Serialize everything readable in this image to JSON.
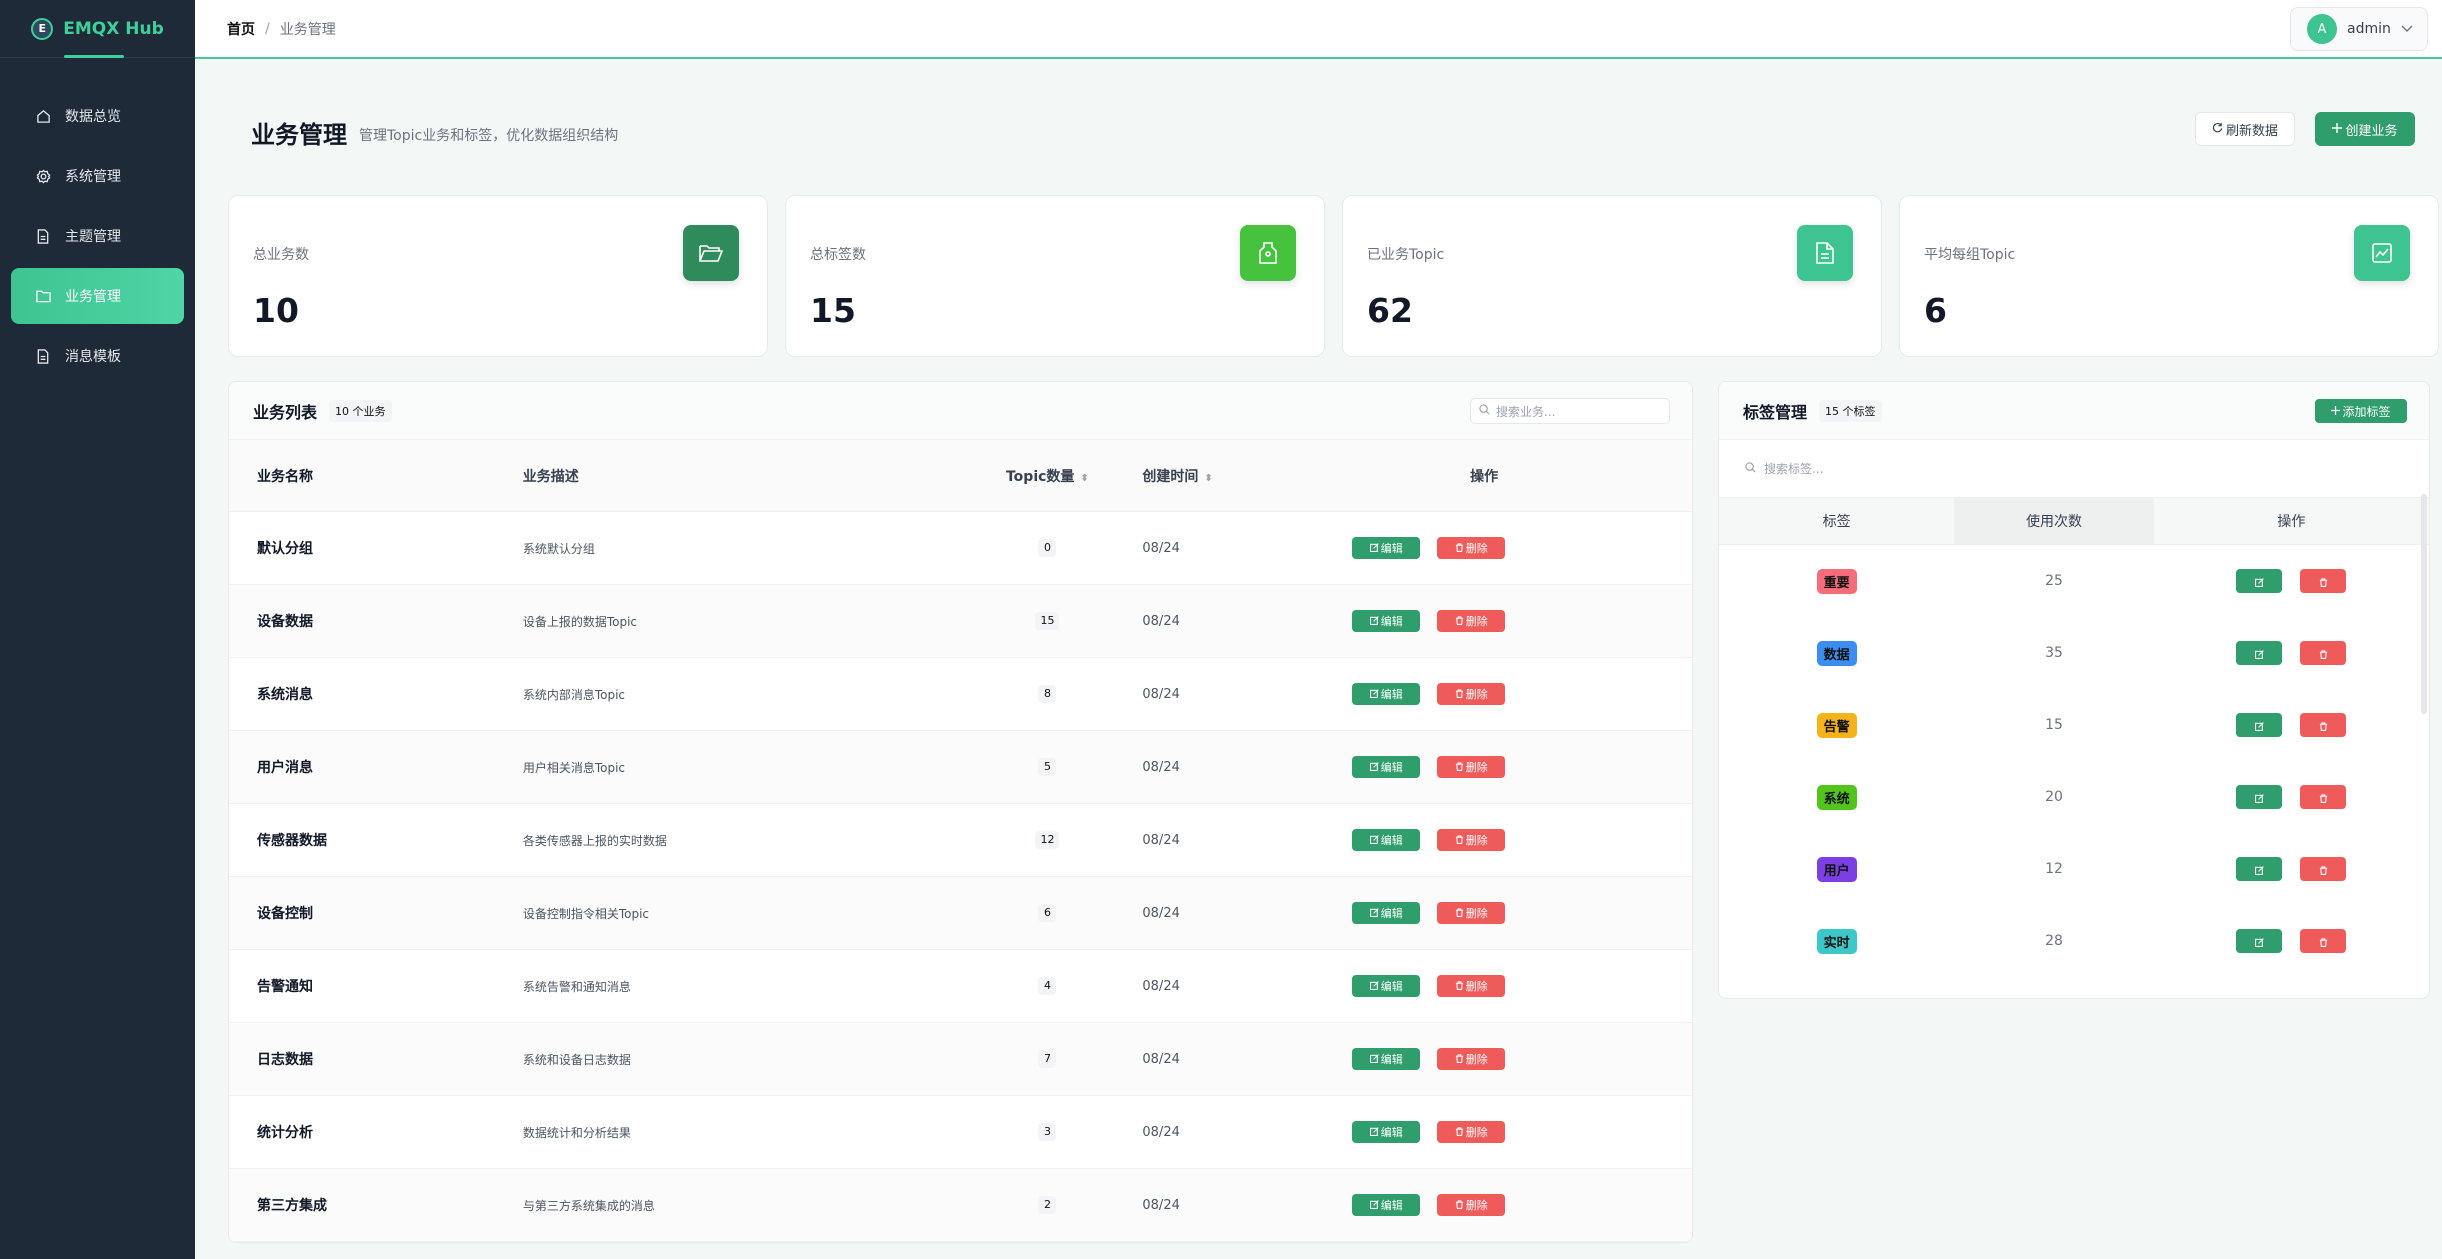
{
  "app": {
    "brand_initial": "E",
    "brand_name": "EMQX Hub"
  },
  "sidebar": {
    "items": [
      {
        "label": "数据总览",
        "icon": "home-icon",
        "active": false
      },
      {
        "label": "系统管理",
        "icon": "gear-icon",
        "active": false
      },
      {
        "label": "主题管理",
        "icon": "document-icon",
        "active": false
      },
      {
        "label": "业务管理",
        "icon": "folder-icon",
        "active": true
      },
      {
        "label": "消息模板",
        "icon": "document-icon",
        "active": false
      }
    ]
  },
  "header": {
    "breadcrumb_home": "首页",
    "breadcrumb_sep": "/",
    "breadcrumb_current": "业务管理",
    "user_initial": "A",
    "user_name": "admin"
  },
  "page": {
    "title": "业务管理",
    "subtitle": "管理Topic业务和标签，优化数据组织结构",
    "refresh_label": "刷新数据",
    "create_label": "创建业务"
  },
  "stats": [
    {
      "label": "总业务数",
      "value": "10",
      "icon": "folder-open-icon",
      "color": "#2f8a5c"
    },
    {
      "label": "总标签数",
      "value": "15",
      "icon": "tag-icon",
      "color": "#46c23e"
    },
    {
      "label": "已业务Topic",
      "value": "62",
      "icon": "file-text-icon",
      "color": "#3ec490"
    },
    {
      "label": "平均每组Topic",
      "value": "6",
      "icon": "trend-chart-icon",
      "color": "#3ec490"
    }
  ],
  "business": {
    "title": "业务列表",
    "count": "10 个业务",
    "search_placeholder": "搜索业务...",
    "columns": [
      "业务名称",
      "业务描述",
      "Topic数量",
      "创建时间",
      "操作"
    ],
    "edit_label": "编辑",
    "delete_label": "删除",
    "rows": [
      {
        "name": "默认分组",
        "desc": "系统默认分组",
        "topics": "0",
        "created": "08/24"
      },
      {
        "name": "设备数据",
        "desc": "设备上报的数据Topic",
        "topics": "15",
        "created": "08/24"
      },
      {
        "name": "系统消息",
        "desc": "系统内部消息Topic",
        "topics": "8",
        "created": "08/24"
      },
      {
        "name": "用户消息",
        "desc": "用户相关消息Topic",
        "topics": "5",
        "created": "08/24"
      },
      {
        "name": "传感器数据",
        "desc": "各类传感器上报的实时数据",
        "topics": "12",
        "created": "08/24"
      },
      {
        "name": "设备控制",
        "desc": "设备控制指令相关Topic",
        "topics": "6",
        "created": "08/24"
      },
      {
        "name": "告警通知",
        "desc": "系统告警和通知消息",
        "topics": "4",
        "created": "08/24"
      },
      {
        "name": "日志数据",
        "desc": "系统和设备日志数据",
        "topics": "7",
        "created": "08/24"
      },
      {
        "name": "统计分析",
        "desc": "数据统计和分析结果",
        "topics": "3",
        "created": "08/24"
      },
      {
        "name": "第三方集成",
        "desc": "与第三方系统集成的消息",
        "topics": "2",
        "created": "08/24"
      }
    ]
  },
  "tags": {
    "title": "标签管理",
    "count": "15 个标签",
    "add_label": "添加标签",
    "search_placeholder": "搜索标签...",
    "columns": [
      "标签",
      "使用次数",
      "操作"
    ],
    "rows": [
      {
        "name": "重要",
        "uses": "25",
        "color": "#f56c7a"
      },
      {
        "name": "数据",
        "uses": "35",
        "color": "#3b8ef0"
      },
      {
        "name": "告警",
        "uses": "15",
        "color": "#f5b31b"
      },
      {
        "name": "系统",
        "uses": "20",
        "color": "#52c41a"
      },
      {
        "name": "用户",
        "uses": "12",
        "color": "#7b3fe4"
      },
      {
        "name": "实时",
        "uses": "28",
        "color": "#3cc8c8"
      }
    ]
  }
}
